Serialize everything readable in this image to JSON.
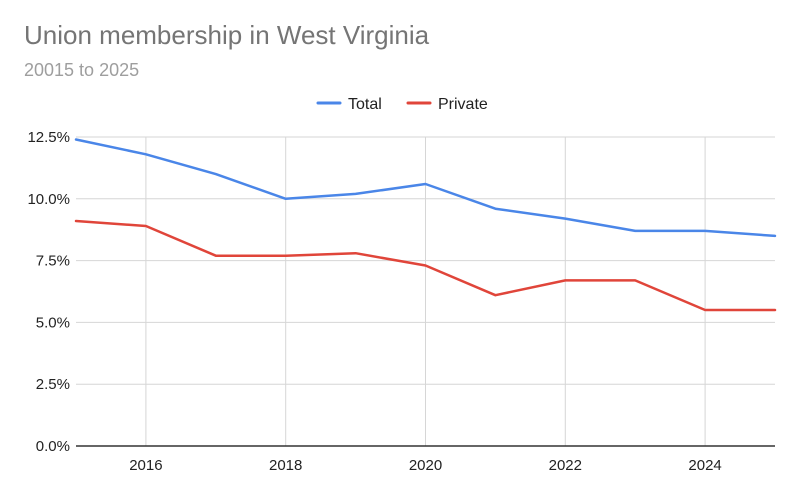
{
  "chart_data": {
    "type": "line",
    "title": "Union membership in West Virginia",
    "subtitle": "20015 to 2025",
    "xlabel": "",
    "ylabel": "",
    "x": [
      2015,
      2016,
      2017,
      2018,
      2019,
      2020,
      2021,
      2022,
      2023,
      2024,
      2025
    ],
    "xlim": [
      2015,
      2025
    ],
    "ylim": [
      0,
      12.5
    ],
    "x_ticks": [
      "2016",
      "2018",
      "2020",
      "2022",
      "2024"
    ],
    "y_ticks": [
      "0.0%",
      "2.5%",
      "5.0%",
      "7.5%",
      "10.0%",
      "12.5%"
    ],
    "grid": true,
    "legend_position": "top-center",
    "series": [
      {
        "name": "Total",
        "color": "#4a86e8",
        "values": [
          12.4,
          11.8,
          11.0,
          10.0,
          10.2,
          10.6,
          9.6,
          9.2,
          8.7,
          8.7,
          8.5
        ]
      },
      {
        "name": "Private",
        "color": "#e0453a",
        "values": [
          9.1,
          8.9,
          7.7,
          7.7,
          7.8,
          7.3,
          6.1,
          6.7,
          6.7,
          5.5,
          5.5
        ]
      }
    ]
  }
}
